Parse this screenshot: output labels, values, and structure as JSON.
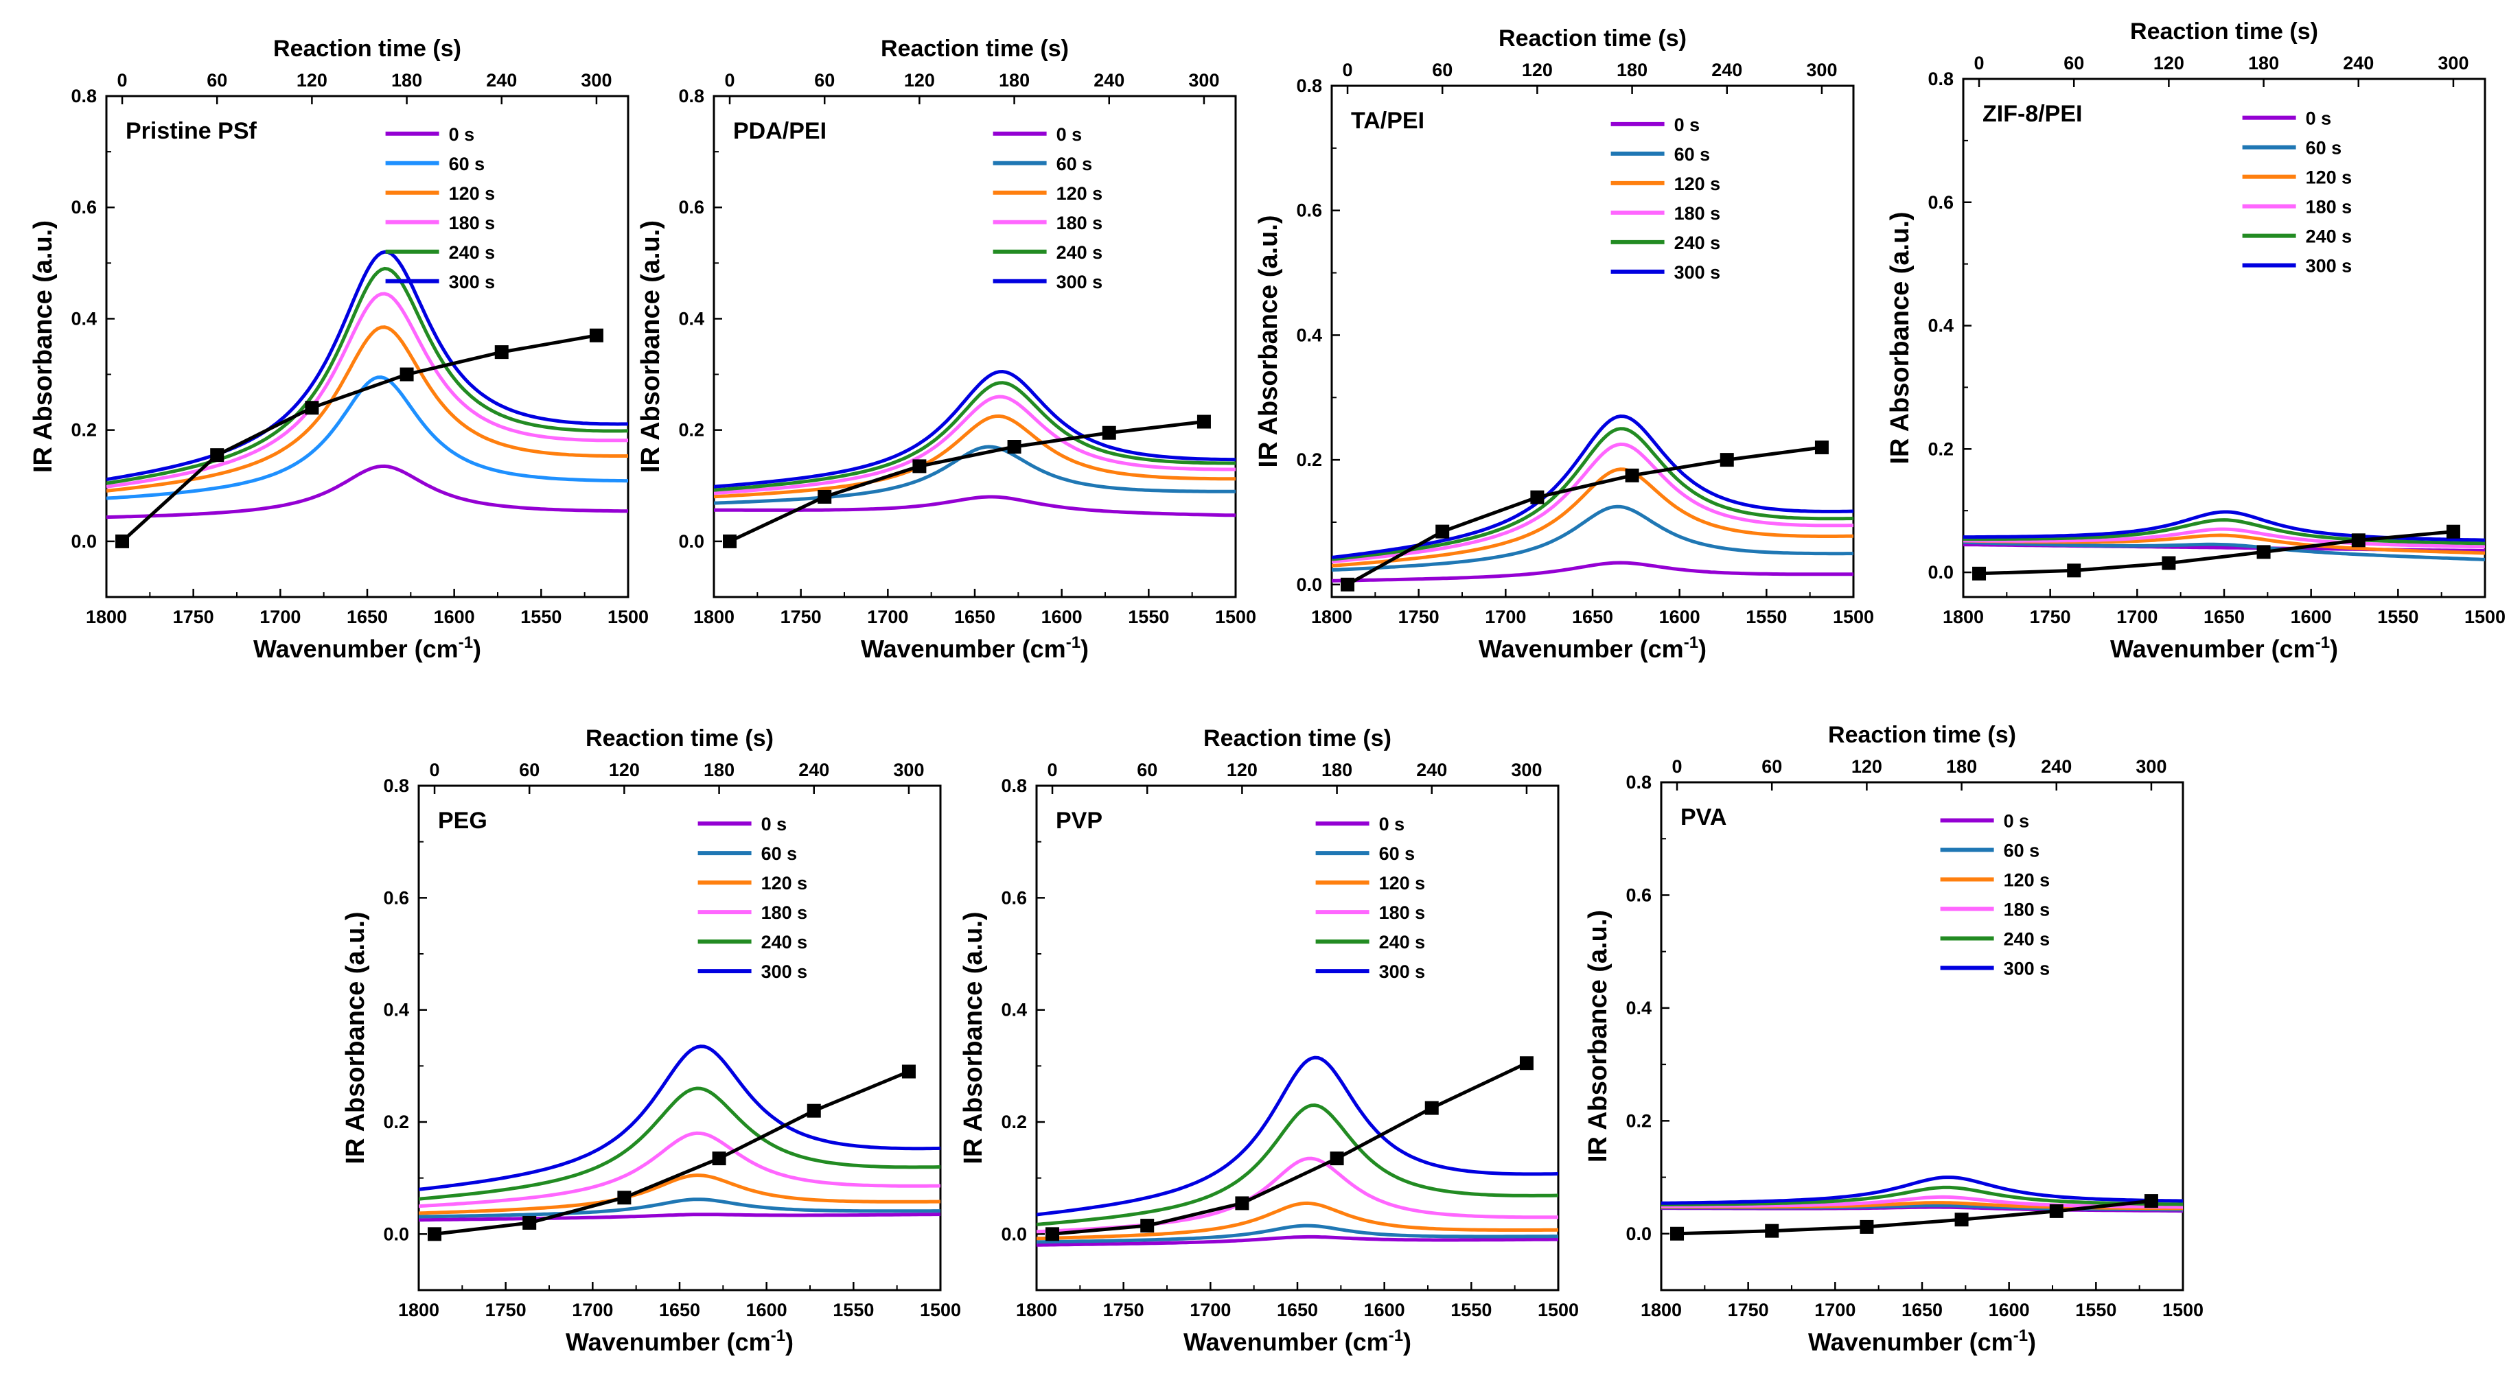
{
  "figure": {
    "wavenumber_label": "Wavenumber (cm",
    "wavenumber_unit_sup": "-1",
    "wavenumber_label_close": ")",
    "absorbance_label": "IR Absorbance (a.u.)",
    "reaction_label": "Reaction time (s)"
  },
  "chart_data": [
    {
      "type": "line",
      "panel": "Pristine PSf",
      "xlabel": "Wavenumber (cm-1)",
      "ylabel": "IR Absorbance (a.u.)",
      "x2label": "Reaction time (s)",
      "xlim": [
        1800,
        1500
      ],
      "ylim": [
        -0.1,
        0.8
      ],
      "xticks": [
        "1800",
        "1750",
        "1700",
        "1650",
        "1600",
        "1550",
        "1500"
      ],
      "yticks": [
        "0.0",
        "0.2",
        "0.4",
        "0.6",
        "0.8"
      ],
      "x2ticks": [
        "0",
        "60",
        "120",
        "180",
        "240",
        "300"
      ],
      "x2lim": [
        -10,
        320
      ],
      "legend": [
        "0 s",
        "60 s",
        "120 s",
        "180 s",
        "240 s",
        "300 s"
      ],
      "series": [
        {
          "name": "0 s",
          "color": "#9400d3",
          "base_left": 0.04,
          "peak": 0.135,
          "center": 1641,
          "width": 32,
          "base_right": 0.05
        },
        {
          "name": "60 s",
          "color": "#1e90ff",
          "base_left": 0.07,
          "peak": 0.295,
          "center": 1643,
          "width": 30,
          "base_right": 0.1
        },
        {
          "name": "120 s",
          "color": "#ff7f0e",
          "base_left": 0.08,
          "peak": 0.385,
          "center": 1641,
          "width": 32,
          "base_right": 0.14
        },
        {
          "name": "180 s",
          "color": "#ff66ff",
          "base_left": 0.085,
          "peak": 0.445,
          "center": 1641,
          "width": 33,
          "base_right": 0.165
        },
        {
          "name": "240 s",
          "color": "#228b22",
          "base_left": 0.09,
          "peak": 0.49,
          "center": 1640,
          "width": 33,
          "base_right": 0.18
        },
        {
          "name": "300 s",
          "color": "#0000e0",
          "base_left": 0.095,
          "peak": 0.52,
          "center": 1640,
          "width": 34,
          "base_right": 0.19
        }
      ],
      "reaction_points": {
        "t": [
          0,
          60,
          120,
          180,
          240,
          300
        ],
        "values": [
          0.0,
          0.155,
          0.24,
          0.3,
          0.34,
          0.37
        ]
      }
    },
    {
      "type": "line",
      "panel": "PDA/PEI",
      "xlabel": "Wavenumber (cm-1)",
      "ylabel": "IR Absorbance (a.u.)",
      "x2label": "Reaction time (s)",
      "xlim": [
        1800,
        1500
      ],
      "ylim": [
        -0.1,
        0.8
      ],
      "xticks": [
        "1800",
        "1750",
        "1700",
        "1650",
        "1600",
        "1550",
        "1500"
      ],
      "yticks": [
        "0.0",
        "0.2",
        "0.4",
        "0.6",
        "0.8"
      ],
      "x2ticks": [
        "0",
        "60",
        "120",
        "180",
        "240",
        "300"
      ],
      "x2lim": [
        -10,
        320
      ],
      "legend": [
        "0 s",
        "60 s",
        "120 s",
        "180 s",
        "240 s",
        "300 s"
      ],
      "series": [
        {
          "name": "0 s",
          "color": "#9400d3",
          "base_left": 0.055,
          "peak": 0.08,
          "center": 1640,
          "width": 35,
          "base_right": 0.045
        },
        {
          "name": "60 s",
          "color": "#1f77b4",
          "base_left": 0.065,
          "peak": 0.17,
          "center": 1642,
          "width": 32,
          "base_right": 0.085
        },
        {
          "name": "120 s",
          "color": "#ff7f0e",
          "base_left": 0.075,
          "peak": 0.225,
          "center": 1637,
          "width": 33,
          "base_right": 0.105
        },
        {
          "name": "180 s",
          "color": "#ff66ff",
          "base_left": 0.08,
          "peak": 0.26,
          "center": 1636,
          "width": 34,
          "base_right": 0.12
        },
        {
          "name": "240 s",
          "color": "#228b22",
          "base_left": 0.085,
          "peak": 0.285,
          "center": 1635,
          "width": 34,
          "base_right": 0.13
        },
        {
          "name": "300 s",
          "color": "#0000e0",
          "base_left": 0.09,
          "peak": 0.305,
          "center": 1635,
          "width": 35,
          "base_right": 0.135
        }
      ],
      "reaction_points": {
        "t": [
          0,
          60,
          120,
          180,
          240,
          300
        ],
        "values": [
          0.0,
          0.08,
          0.135,
          0.17,
          0.195,
          0.215
        ]
      }
    },
    {
      "type": "line",
      "panel": "TA/PEI",
      "xlabel": "Wavenumber (cm-1)",
      "ylabel": "IR Absorbance (a.u.)",
      "x2label": "Reaction time (s)",
      "xlim": [
        1800,
        1500
      ],
      "ylim": [
        -0.02,
        0.8
      ],
      "xticks": [
        "1800",
        "1750",
        "1700",
        "1650",
        "1600",
        "1550",
        "1500"
      ],
      "yticks": [
        "0.0",
        "0.2",
        "0.4",
        "0.6",
        "0.8"
      ],
      "x2ticks": [
        "0",
        "60",
        "120",
        "180",
        "240",
        "300"
      ],
      "x2lim": [
        -10,
        320
      ],
      "legend": [
        "0 s",
        "60 s",
        "120 s",
        "180 s",
        "240 s",
        "300 s"
      ],
      "series": [
        {
          "name": "0 s",
          "color": "#9400d3",
          "base_left": 0.005,
          "peak": 0.035,
          "center": 1635,
          "width": 36,
          "base_right": 0.015
        },
        {
          "name": "60 s",
          "color": "#1f77b4",
          "base_left": 0.02,
          "peak": 0.125,
          "center": 1636,
          "width": 32,
          "base_right": 0.045
        },
        {
          "name": "120 s",
          "color": "#ff7f0e",
          "base_left": 0.025,
          "peak": 0.185,
          "center": 1634,
          "width": 33,
          "base_right": 0.07
        },
        {
          "name": "180 s",
          "color": "#ff66ff",
          "base_left": 0.03,
          "peak": 0.225,
          "center": 1634,
          "width": 34,
          "base_right": 0.085
        },
        {
          "name": "240 s",
          "color": "#228b22",
          "base_left": 0.033,
          "peak": 0.25,
          "center": 1634,
          "width": 34,
          "base_right": 0.095
        },
        {
          "name": "300 s",
          "color": "#0000e0",
          "base_left": 0.035,
          "peak": 0.27,
          "center": 1634,
          "width": 35,
          "base_right": 0.105
        }
      ],
      "reaction_points": {
        "t": [
          0,
          60,
          120,
          180,
          240,
          300
        ],
        "values": [
          0.0,
          0.085,
          0.14,
          0.175,
          0.2,
          0.22
        ]
      }
    },
    {
      "type": "line",
      "panel": "ZIF-8/PEI",
      "xlabel": "Wavenumber (cm-1)",
      "ylabel": "IR Absorbance (a.u.)",
      "x2label": "Reaction time (s)",
      "xlim": [
        1800,
        1500
      ],
      "ylim": [
        -0.04,
        0.8
      ],
      "xticks": [
        "1800",
        "1750",
        "1700",
        "1650",
        "1600",
        "1550",
        "1500"
      ],
      "yticks": [
        "0.0",
        "0.2",
        "0.4",
        "0.6",
        "0.8"
      ],
      "x2ticks": [
        "0",
        "60",
        "120",
        "180",
        "240",
        "300"
      ],
      "x2lim": [
        -10,
        320
      ],
      "legend": [
        "0 s",
        "60 s",
        "120 s",
        "180 s",
        "240 s",
        "300 s"
      ],
      "series": [
        {
          "name": "0 s",
          "color": "#9400d3",
          "base_left": 0.045,
          "peak": 0.04,
          "center": 1650,
          "width": 40,
          "base_right": 0.035
        },
        {
          "name": "60 s",
          "color": "#1f77b4",
          "base_left": 0.048,
          "peak": 0.045,
          "center": 1650,
          "width": 40,
          "base_right": 0.02
        },
        {
          "name": "120 s",
          "color": "#ff7f0e",
          "base_left": 0.05,
          "peak": 0.06,
          "center": 1650,
          "width": 38,
          "base_right": 0.03
        },
        {
          "name": "180 s",
          "color": "#ff66ff",
          "base_left": 0.05,
          "peak": 0.07,
          "center": 1650,
          "width": 36,
          "base_right": 0.04
        },
        {
          "name": "240 s",
          "color": "#228b22",
          "base_left": 0.052,
          "peak": 0.085,
          "center": 1650,
          "width": 35,
          "base_right": 0.045
        },
        {
          "name": "300 s",
          "color": "#0000e0",
          "base_left": 0.055,
          "peak": 0.098,
          "center": 1649,
          "width": 34,
          "base_right": 0.05
        }
      ],
      "reaction_points": {
        "t": [
          0,
          60,
          120,
          180,
          240,
          300
        ],
        "values": [
          -0.002,
          0.003,
          0.015,
          0.033,
          0.052,
          0.066
        ]
      }
    },
    {
      "type": "line",
      "panel": "PEG",
      "xlabel": "Wavenumber (cm-1)",
      "ylabel": "IR Absorbance (a.u.)",
      "x2label": "Reaction time (s)",
      "xlim": [
        1800,
        1500
      ],
      "ylim": [
        -0.1,
        0.8
      ],
      "xticks": [
        "1800",
        "1750",
        "1700",
        "1650",
        "1600",
        "1550",
        "1500"
      ],
      "yticks": [
        "0.0",
        "0.2",
        "0.4",
        "0.6",
        "0.8"
      ],
      "x2ticks": [
        "0",
        "60",
        "120",
        "180",
        "240",
        "300"
      ],
      "x2lim": [
        -10,
        320
      ],
      "legend": [
        "0 s",
        "60 s",
        "120 s",
        "180 s",
        "240 s",
        "300 s"
      ],
      "series": [
        {
          "name": "0 s",
          "color": "#9400d3",
          "base_left": 0.025,
          "peak": 0.035,
          "center": 1640,
          "width": 35,
          "base_right": 0.035
        },
        {
          "name": "60 s",
          "color": "#1f77b4",
          "base_left": 0.03,
          "peak": 0.062,
          "center": 1640,
          "width": 32,
          "base_right": 0.04
        },
        {
          "name": "120 s",
          "color": "#ff7f0e",
          "base_left": 0.035,
          "peak": 0.105,
          "center": 1640,
          "width": 32,
          "base_right": 0.055
        },
        {
          "name": "180 s",
          "color": "#ff66ff",
          "base_left": 0.045,
          "peak": 0.18,
          "center": 1640,
          "width": 33,
          "base_right": 0.08
        },
        {
          "name": "240 s",
          "color": "#228b22",
          "base_left": 0.055,
          "peak": 0.26,
          "center": 1640,
          "width": 34,
          "base_right": 0.11
        },
        {
          "name": "300 s",
          "color": "#0000e0",
          "base_left": 0.07,
          "peak": 0.335,
          "center": 1638,
          "width": 34,
          "base_right": 0.14
        }
      ],
      "reaction_points": {
        "t": [
          0,
          60,
          120,
          180,
          240,
          300
        ],
        "values": [
          0.0,
          0.02,
          0.065,
          0.135,
          0.22,
          0.29
        ]
      }
    },
    {
      "type": "line",
      "panel": "PVP",
      "xlabel": "Wavenumber (cm-1)",
      "ylabel": "IR Absorbance (a.u.)",
      "x2label": "Reaction time (s)",
      "xlim": [
        1800,
        1500
      ],
      "ylim": [
        -0.1,
        0.8
      ],
      "xticks": [
        "1800",
        "1750",
        "1700",
        "1650",
        "1600",
        "1550",
        "1500"
      ],
      "yticks": [
        "0.0",
        "0.2",
        "0.4",
        "0.6",
        "0.8"
      ],
      "x2ticks": [
        "0",
        "60",
        "120",
        "180",
        "240",
        "300"
      ],
      "x2lim": [
        -10,
        320
      ],
      "legend": [
        "0 s",
        "60 s",
        "120 s",
        "180 s",
        "240 s",
        "300 s"
      ],
      "series": [
        {
          "name": "0 s",
          "color": "#9400d3",
          "base_left": -0.02,
          "peak": -0.005,
          "center": 1645,
          "width": 35,
          "base_right": -0.01
        },
        {
          "name": "60 s",
          "color": "#1f77b4",
          "base_left": -0.015,
          "peak": 0.015,
          "center": 1645,
          "width": 30,
          "base_right": -0.005
        },
        {
          "name": "120 s",
          "color": "#ff7f0e",
          "base_left": -0.01,
          "peak": 0.055,
          "center": 1645,
          "width": 30,
          "base_right": 0.005
        },
        {
          "name": "180 s",
          "color": "#ff66ff",
          "base_left": 0.0,
          "peak": 0.135,
          "center": 1643,
          "width": 30,
          "base_right": 0.025
        },
        {
          "name": "240 s",
          "color": "#228b22",
          "base_left": 0.01,
          "peak": 0.23,
          "center": 1641,
          "width": 31,
          "base_right": 0.06
        },
        {
          "name": "300 s",
          "color": "#0000e0",
          "base_left": 0.025,
          "peak": 0.315,
          "center": 1640,
          "width": 32,
          "base_right": 0.095
        }
      ],
      "reaction_points": {
        "t": [
          0,
          60,
          120,
          180,
          240,
          300
        ],
        "values": [
          0.0,
          0.015,
          0.055,
          0.135,
          0.225,
          0.305
        ]
      }
    },
    {
      "type": "line",
      "panel": "PVA",
      "xlabel": "Wavenumber (cm-1)",
      "ylabel": "IR Absorbance (a.u.)",
      "x2label": "Reaction time (s)",
      "xlim": [
        1800,
        1500
      ],
      "ylim": [
        -0.1,
        0.8
      ],
      "xticks": [
        "1800",
        "1750",
        "1700",
        "1650",
        "1600",
        "1550",
        "1500"
      ],
      "yticks": [
        "0.0",
        "0.2",
        "0.4",
        "0.6",
        "0.8"
      ],
      "x2ticks": [
        "0",
        "60",
        "120",
        "180",
        "240",
        "300"
      ],
      "x2lim": [
        -10,
        320
      ],
      "legend": [
        "0 s",
        "60 s",
        "120 s",
        "180 s",
        "240 s",
        "300 s"
      ],
      "series": [
        {
          "name": "0 s",
          "color": "#9400d3",
          "base_left": 0.045,
          "peak": 0.047,
          "center": 1640,
          "width": 40,
          "base_right": 0.04
        },
        {
          "name": "60 s",
          "color": "#1f77b4",
          "base_left": 0.046,
          "peak": 0.05,
          "center": 1640,
          "width": 40,
          "base_right": 0.042
        },
        {
          "name": "120 s",
          "color": "#ff7f0e",
          "base_left": 0.047,
          "peak": 0.055,
          "center": 1640,
          "width": 38,
          "base_right": 0.044
        },
        {
          "name": "180 s",
          "color": "#ff66ff",
          "base_left": 0.048,
          "peak": 0.065,
          "center": 1638,
          "width": 36,
          "base_right": 0.046
        },
        {
          "name": "240 s",
          "color": "#228b22",
          "base_left": 0.05,
          "peak": 0.082,
          "center": 1636,
          "width": 36,
          "base_right": 0.05
        },
        {
          "name": "300 s",
          "color": "#0000e0",
          "base_left": 0.052,
          "peak": 0.1,
          "center": 1635,
          "width": 36,
          "base_right": 0.055
        }
      ],
      "reaction_points": {
        "t": [
          0,
          60,
          120,
          180,
          240,
          300
        ],
        "values": [
          0.0,
          0.005,
          0.012,
          0.025,
          0.04,
          0.058
        ]
      }
    }
  ]
}
